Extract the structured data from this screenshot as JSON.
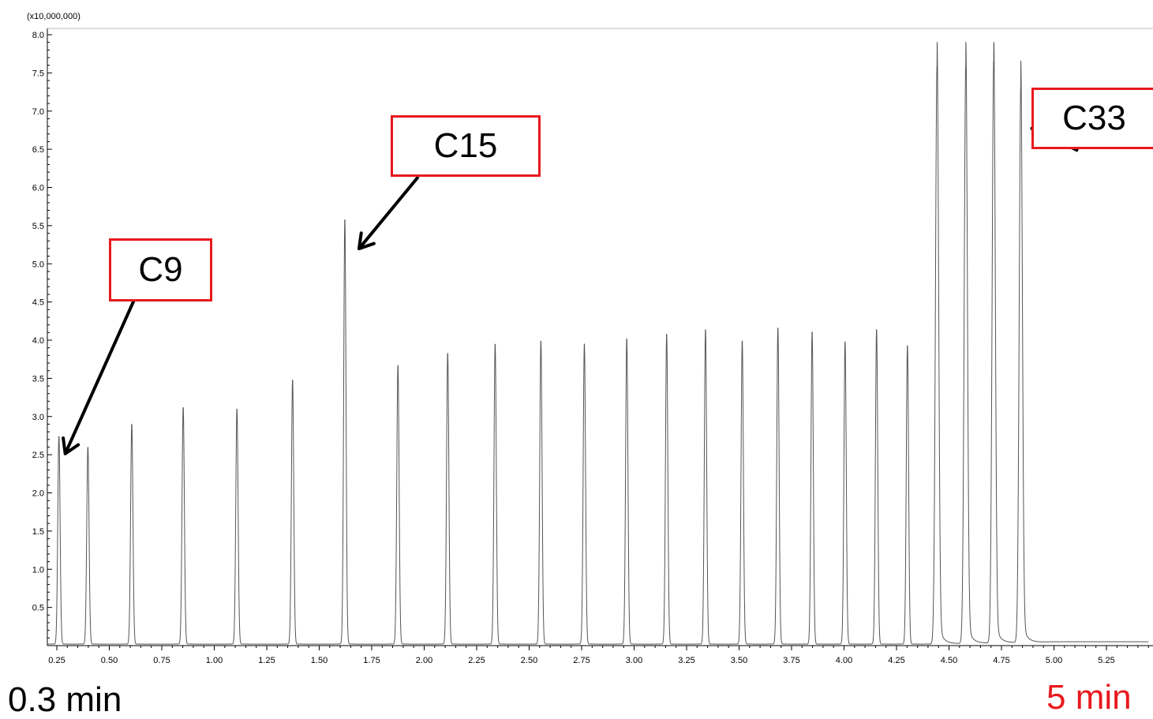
{
  "chart_data": {
    "type": "line",
    "y_scale_note": "(x10,000,000)",
    "xlim": [
      0.2,
      5.45
    ],
    "ylim": [
      0.0,
      8.0
    ],
    "x_ticks": [
      "0.25",
      "0.50",
      "0.75",
      "1.00",
      "1.25",
      "1.50",
      "1.75",
      "2.00",
      "2.25",
      "2.50",
      "2.75",
      "3.00",
      "3.25",
      "3.50",
      "3.75",
      "4.00",
      "4.25",
      "4.50",
      "4.75",
      "5.00",
      "5.25"
    ],
    "y_ticks": [
      "0.5",
      "1.0",
      "1.5",
      "2.0",
      "2.5",
      "3.0",
      "3.5",
      "4.0",
      "4.5",
      "5.0",
      "5.5",
      "6.0",
      "6.5",
      "7.0",
      "7.5",
      "8.0"
    ],
    "grid": false,
    "line_color": "#555555",
    "baseline": 0.02,
    "tail_baseline": 0.05,
    "peaks": [
      {
        "x": 0.26,
        "y": 2.72
      },
      {
        "x": 0.398,
        "y": 2.58
      },
      {
        "x": 0.607,
        "y": 2.88
      },
      {
        "x": 0.852,
        "y": 3.1
      },
      {
        "x": 1.108,
        "y": 3.08
      },
      {
        "x": 1.373,
        "y": 3.46
      },
      {
        "x": 1.622,
        "y": 5.56
      },
      {
        "x": 1.875,
        "y": 3.65
      },
      {
        "x": 2.112,
        "y": 3.81
      },
      {
        "x": 2.338,
        "y": 3.93
      },
      {
        "x": 2.556,
        "y": 3.97
      },
      {
        "x": 2.763,
        "y": 3.93
      },
      {
        "x": 2.965,
        "y": 4.0
      },
      {
        "x": 3.155,
        "y": 4.06
      },
      {
        "x": 3.34,
        "y": 4.12
      },
      {
        "x": 3.515,
        "y": 3.97
      },
      {
        "x": 3.685,
        "y": 4.14
      },
      {
        "x": 3.848,
        "y": 4.09
      },
      {
        "x": 4.005,
        "y": 3.96
      },
      {
        "x": 4.155,
        "y": 4.12
      },
      {
        "x": 4.302,
        "y": 3.91
      },
      {
        "x": 4.443,
        "y": 7.57
      },
      {
        "x": 4.58,
        "y": 7.56
      },
      {
        "x": 4.713,
        "y": 7.62
      },
      {
        "x": 4.842,
        "y": 7.27
      }
    ],
    "annotations": [
      {
        "label": "C9",
        "target_x": 0.26,
        "target_y": 2.72
      },
      {
        "label": "C15",
        "target_x": 1.622,
        "target_y": 5.56
      },
      {
        "label": "C33",
        "target_x": 4.842,
        "target_y": 7.27
      }
    ]
  },
  "range_labels": {
    "start": "0.3 min",
    "end": "5 min",
    "start_color": "#000000",
    "end_color": "#e8191e"
  },
  "colors": {
    "annotation_border": "#e8191e",
    "arrow": "#000000"
  }
}
